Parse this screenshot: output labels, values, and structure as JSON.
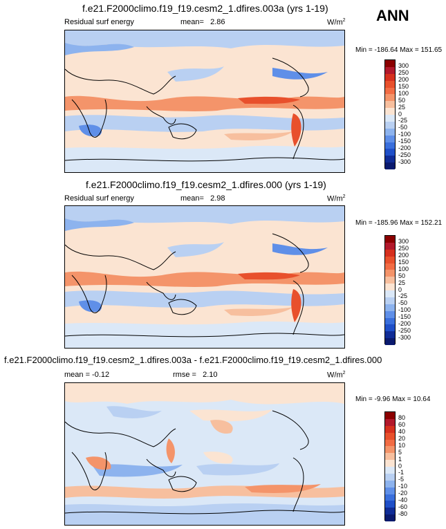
{
  "header": {
    "season": "ANN"
  },
  "panels": [
    {
      "title": "f.e21.F2000climo.f19_f19.cesm2_1.dfires.003a (yrs 1-19)",
      "left_label": "Residual surf energy",
      "stat_label": "mean=",
      "stat_value": "2.86",
      "units": "W/m",
      "units_sup": "2",
      "minmax": "Min = -186.64 Max = 151.65",
      "levels": [
        "300",
        "250",
        "200",
        "150",
        "100",
        "50",
        "25",
        "0",
        "-25",
        "-50",
        "-100",
        "-150",
        "-200",
        "-250",
        "-300"
      ]
    },
    {
      "title": "f.e21.F2000climo.f19_f19.cesm2_1.dfires.000 (yrs 1-19)",
      "left_label": "Residual surf energy",
      "stat_label": "mean=",
      "stat_value": "2.98",
      "units": "W/m",
      "units_sup": "2",
      "minmax": "Min = -185.96 Max = 152.21",
      "levels": [
        "300",
        "250",
        "200",
        "150",
        "100",
        "50",
        "25",
        "0",
        "-25",
        "-50",
        "-100",
        "-150",
        "-200",
        "-250",
        "-300"
      ]
    },
    {
      "title": "f.e21.F2000climo.f19_f19.cesm2_1.dfires.003a - f.e21.F2000climo.f19_f19.cesm2_1.dfires.000",
      "left_label": "mean =  -0.12",
      "stat_label": "rmse =",
      "stat_value": "2.10",
      "units": "W/m",
      "units_sup": "2",
      "minmax": "Min =  -9.96 Max =  10.64",
      "levels": [
        "80",
        "60",
        "40",
        "20",
        "10",
        "5",
        "1",
        "0",
        "-1",
        "-5",
        "-10",
        "-20",
        "-40",
        "-60",
        "-80"
      ]
    }
  ],
  "colors": {
    "colorbar": [
      "#8b0000",
      "#b2182b",
      "#d6301e",
      "#e8502c",
      "#f26c44",
      "#f4946a",
      "#f7bf9e",
      "#fbe4d2",
      "#dbe8f7",
      "#b9d0f2",
      "#8db3ee",
      "#5f8fe8",
      "#3a6fdc",
      "#1f4fc8",
      "#102c96",
      "#0a1a6e"
    ]
  }
}
